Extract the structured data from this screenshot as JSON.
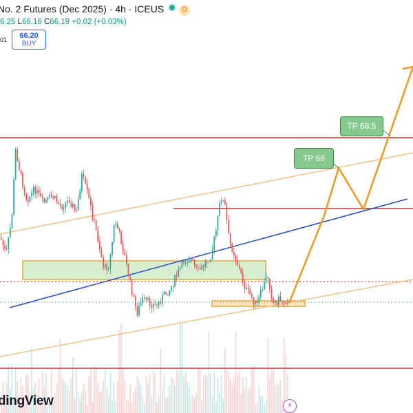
{
  "header": {
    "title": "No. 2 Futures (Dec 2025) · 4h · ICEUS",
    "market_status": "D"
  },
  "ohlc": {
    "h_partial": "6.25",
    "l_label": "L",
    "l_value": "66.16",
    "c_label": "C",
    "c_value": "66.19",
    "change": "+0.02 (+0.03%)"
  },
  "left_label": "01",
  "buy_button": {
    "price": "66.20",
    "label": "BUY"
  },
  "targets": [
    {
      "label": "TP 68.5"
    },
    {
      "label": "TP 68"
    }
  ],
  "watermark": "dingView",
  "colors": {
    "up": "#26a69a",
    "down": "#ef5350",
    "resistance": "#d32f2f",
    "trend_blue": "#2649d6",
    "channel": "#f5c086",
    "projection": "#f09a20",
    "zone_fill": "#d6efd0",
    "zone_border": "#e0a84a"
  },
  "icons": {
    "flash": "flash-icon"
  }
}
